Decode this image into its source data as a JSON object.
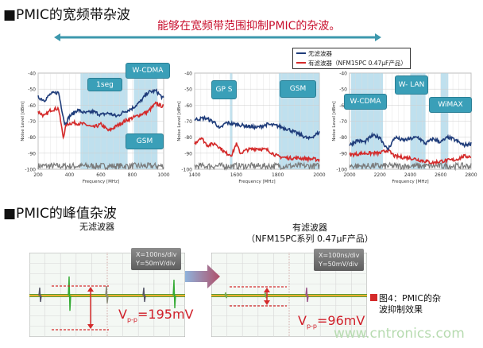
{
  "section1": {
    "title": "■PMIC的宽频带杂波",
    "subtitle": "能够在宽频带范围抑制PMIC的杂波。"
  },
  "legend": {
    "items": [
      {
        "label": "无滤波器",
        "color": "#1f3c7a"
      },
      {
        "label": "有滤波器（NFM15PC 0.47μF产品）",
        "color": "#d42a2a"
      }
    ]
  },
  "colors": {
    "band": "#a9d6e8",
    "tag": "#3a9fb8",
    "noise_floor": "#7a7a7a",
    "accent_red": "#c8102e",
    "arrow": "#3d98ad"
  },
  "chart_data": [
    {
      "type": "line",
      "xlabel": "Frequency [MHz]",
      "ylabel": "Noise Level [dBm]",
      "xlim": [
        200,
        1000
      ],
      "ylim": [
        -100,
        -40
      ],
      "xticks": [
        200,
        400,
        600,
        800,
        1000
      ],
      "yticks": [
        -40,
        -50,
        -60,
        -70,
        -80,
        -90,
        -100
      ],
      "grid": true,
      "bands": [
        {
          "label": "1seg",
          "range": [
            470,
            770
          ]
        },
        {
          "label": "W-CDMA",
          "range": [
            810,
            960
          ]
        },
        {
          "label": "GSM",
          "range": [
            810,
            960
          ]
        }
      ],
      "series": [
        {
          "name": "无滤波器",
          "x": [
            200,
            240,
            280,
            330,
            350,
            370,
            400,
            450,
            500,
            550,
            600,
            650,
            700,
            750,
            800,
            850,
            900,
            950,
            1000
          ],
          "y": [
            -55,
            -57,
            -53,
            -52,
            -62,
            -72,
            -67,
            -63,
            -65,
            -64,
            -66,
            -65,
            -67,
            -64,
            -62,
            -58,
            -52,
            -51,
            -56
          ]
        },
        {
          "name": "有滤波器（NFM15PC 0.47μF产品）",
          "x": [
            200,
            240,
            280,
            330,
            360,
            380,
            420,
            500,
            550,
            600,
            650,
            700,
            750,
            800,
            850,
            900,
            950,
            1000
          ],
          "y": [
            -64,
            -67,
            -63,
            -62,
            -80,
            -72,
            -71,
            -72,
            -74,
            -72,
            -76,
            -73,
            -70,
            -68,
            -66,
            -64,
            -59,
            -61
          ]
        },
        {
          "x": [
            200,
            1000
          ],
          "y": [
            -98,
            -98
          ]
        }
      ]
    },
    {
      "type": "line",
      "xlabel": "Frequency [MHz]",
      "ylabel": "Noise Level [dBm]",
      "xlim": [
        1400,
        2000
      ],
      "ylim": [
        -100,
        -40
      ],
      "xticks": [
        1400,
        1600,
        1800,
        2000
      ],
      "yticks": [
        -40,
        -50,
        -60,
        -70,
        -80,
        -90,
        -100
      ],
      "grid": true,
      "bands": [
        {
          "label": "GP S",
          "range": [
            1570,
            1582
          ]
        },
        {
          "label": "GSM",
          "range": [
            1805,
            2000
          ]
        }
      ],
      "series": [
        {
          "name": "无滤波器",
          "x": [
            1400,
            1450,
            1500,
            1520,
            1550,
            1600,
            1650,
            1700,
            1750,
            1800,
            1850,
            1900,
            1950,
            2000
          ],
          "y": [
            -69,
            -68,
            -71,
            -75,
            -71,
            -72,
            -73,
            -74,
            -72,
            -73,
            -75,
            -78,
            -81,
            -77
          ]
        },
        {
          "name": "有滤波器（NFM15PC 0.47μF产品）",
          "x": [
            1400,
            1430,
            1460,
            1500,
            1550,
            1580,
            1600,
            1620,
            1650,
            1700,
            1750,
            1800,
            1850,
            1900,
            2000
          ],
          "y": [
            -84,
            -80,
            -85,
            -84,
            -90,
            -91,
            -84,
            -90,
            -88,
            -87,
            -88,
            -92,
            -93,
            -93,
            -94
          ]
        },
        {
          "x": [
            1400,
            2000
          ],
          "y": [
            -98,
            -98
          ]
        }
      ]
    },
    {
      "type": "line",
      "xlabel": "Frequency [MHz]",
      "ylabel": "Noise Level [dBm]",
      "xlim": [
        2000,
        2800
      ],
      "ylim": [
        -100,
        -40
      ],
      "xticks": [
        2000,
        2200,
        2400,
        2600,
        2800
      ],
      "yticks": [
        -40,
        -50,
        -60,
        -70,
        -80,
        -90,
        -100
      ],
      "grid": true,
      "bands": [
        {
          "label": "W-CDMA",
          "range": [
            2010,
            2220
          ]
        },
        {
          "label": "W- LAN",
          "range": [
            2400,
            2500
          ]
        },
        {
          "label": "WiMAX",
          "range": [
            2600,
            2650
          ]
        }
      ],
      "series": [
        {
          "name": "无滤波器",
          "x": [
            2000,
            2050,
            2100,
            2150,
            2200,
            2250,
            2300,
            2350,
            2400,
            2450,
            2500,
            2550,
            2600,
            2650,
            2700,
            2750,
            2800
          ],
          "y": [
            -85,
            -82,
            -83,
            -79,
            -80,
            -88,
            -80,
            -82,
            -81,
            -80,
            -84,
            -81,
            -83,
            -80,
            -82,
            -85,
            -84
          ]
        },
        {
          "name": "有滤波器（NFM15PC 0.47μF产品）",
          "x": [
            2000,
            2100,
            2200,
            2250,
            2300,
            2400,
            2500,
            2550,
            2600,
            2700,
            2750,
            2800
          ],
          "y": [
            -91,
            -90,
            -90,
            -88,
            -92,
            -93,
            -95,
            -96,
            -95,
            -94,
            -92,
            -92
          ]
        },
        {
          "x": [
            2000,
            2800
          ],
          "y": [
            -98,
            -98
          ]
        }
      ]
    }
  ],
  "section2": {
    "title": "■PMIC的峰值杂波"
  },
  "scope_left": {
    "label": "无滤波器",
    "x_scale": "X=100ns/div",
    "y_scale": "Y=50mV/div",
    "vpp_prefix": "V",
    "vpp_sub": "p-p",
    "vpp_value": "=195mV"
  },
  "scope_right": {
    "label_line1": "有滤波器",
    "label_line2": "（NFM15PC系列 0.47μF产品）",
    "x_scale": "X=100ns/div",
    "y_scale": "Y=50mV/div",
    "vpp_prefix": "V",
    "vpp_sub": "p-p",
    "vpp_value": "=96mV"
  },
  "caption": {
    "line1": "图4：PMIC的杂",
    "line2": "波抑制效果"
  },
  "watermark": "www.cntronics.com"
}
